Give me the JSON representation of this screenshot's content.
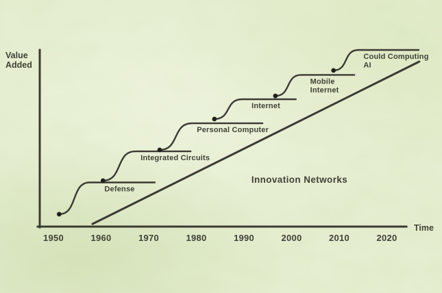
{
  "chart_data": {
    "type": "line",
    "description": "Successive technology S-curves of value added over time, each starting on the plateau of the previous one, with a rising Innovation Networks trend line",
    "x_axis": {
      "title": "Time",
      "ticks": [
        1950,
        1960,
        1970,
        1980,
        1990,
        2000,
        2010,
        2020
      ]
    },
    "y_axis": {
      "title_line1": "Value",
      "title_line2": "Added"
    },
    "curves": [
      {
        "label": "Defense",
        "label_line2": "",
        "start_year": 1951.2,
        "start_value": 7.0,
        "rise_end_year": 1957.6,
        "plateau_value": 25.0,
        "line_end_year": 1971.3,
        "label_year": 1960.7
      },
      {
        "label": "Integrated Circuits",
        "label_line2": "",
        "start_year": 1960.4,
        "start_value": 26.0,
        "rise_end_year": 1967.2,
        "plateau_value": 42.6,
        "line_end_year": 1978.8,
        "label_year": 1968.3
      },
      {
        "label": "Personal Computer",
        "label_line2": "",
        "start_year": 1972.3,
        "start_value": 43.4,
        "rise_end_year": 1979.1,
        "plateau_value": 58.5,
        "line_end_year": 1993.9,
        "label_year": 1980.1
      },
      {
        "label": "Internet",
        "label_line2": "",
        "start_year": 1983.8,
        "start_value": 60.9,
        "rise_end_year": 1989.6,
        "plateau_value": 72.1,
        "line_end_year": 2000.9,
        "label_year": 1991.6
      },
      {
        "label": "Mobile",
        "label_line2": "Internet",
        "start_year": 1996.6,
        "start_value": 74.0,
        "rise_end_year": 2002.0,
        "plateau_value": 85.9,
        "line_end_year": 2013.2,
        "label_year": 2003.9
      },
      {
        "label": "Could Computing",
        "label_line2": "AI",
        "start_year": 2008.8,
        "start_value": 88.4,
        "rise_end_year": 2014.0,
        "plateau_value": 100.0,
        "line_end_year": 2026.7,
        "label_year": 2015.1
      }
    ],
    "network_line": {
      "label": "Innovation Networks",
      "start_year": 1958.2,
      "start_value": 1.5,
      "end_year": 2026.8,
      "end_value": 93.4,
      "label_year": 2001.6,
      "label_value": 26.7
    },
    "colors": {
      "background": "#e3edcd",
      "ink": "#3a3a33",
      "text": "#3e4236",
      "dot": "#20201c"
    }
  }
}
